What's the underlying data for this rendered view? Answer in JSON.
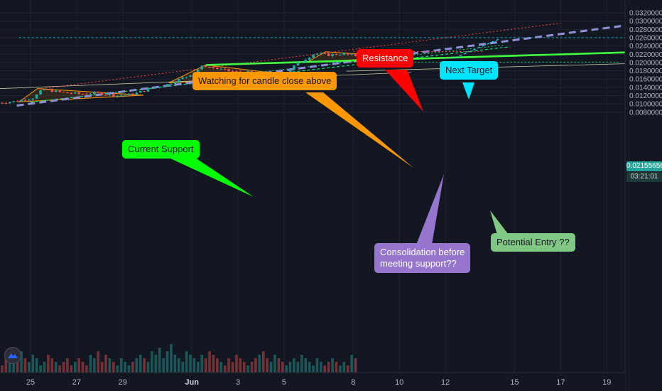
{
  "chart_data": {
    "type": "candlestick",
    "price_axis": [
      "0.03200000",
      "0.03000000",
      "0.02800000",
      "0.02600000",
      "0.02400000",
      "0.02200000",
      "0.02000000",
      "0.01800000",
      "0.01600000",
      "0.01400000",
      "0.01200000",
      "0.01000000",
      "0.00800000"
    ],
    "price_values": [
      0.032,
      0.03,
      0.028,
      0.026,
      0.024,
      0.022,
      0.02,
      0.018,
      0.016,
      0.014,
      0.012,
      0.01,
      0.008
    ],
    "time_axis": [
      {
        "label": "25",
        "day": 25,
        "bold": false
      },
      {
        "label": "27",
        "day": 27,
        "bold": false
      },
      {
        "label": "29",
        "day": 29,
        "bold": false
      },
      {
        "label": "Jun",
        "day": 32,
        "bold": true
      },
      {
        "label": "3",
        "day": 34,
        "bold": false
      },
      {
        "label": "5",
        "day": 36,
        "bold": false
      },
      {
        "label": "8",
        "day": 39,
        "bold": false
      },
      {
        "label": "10",
        "day": 41,
        "bold": false
      },
      {
        "label": "12",
        "day": 43,
        "bold": false
      },
      {
        "label": "15",
        "day": 46,
        "bold": false
      },
      {
        "label": "17",
        "day": 48,
        "bold": false
      },
      {
        "label": "19",
        "day": 50,
        "bold": false
      }
    ],
    "last_price": "0.02155656",
    "last_price_value": 0.02155656,
    "countdown": "03:21:01",
    "colors": {
      "up": "#26a69a",
      "down": "#ef5350",
      "background": "#131722",
      "axis_text": "#b2b5be"
    },
    "grid": true,
    "horizontal_level": 0.026,
    "price_path": [
      [
        23.6,
        0.0102
      ],
      [
        24.5,
        0.0106
      ],
      [
        25.3,
        0.0115
      ],
      [
        25.7,
        0.0135
      ],
      [
        26.5,
        0.0128
      ],
      [
        27.3,
        0.0124
      ],
      [
        28.1,
        0.0126
      ],
      [
        28.9,
        0.012
      ],
      [
        29.6,
        0.0123
      ],
      [
        30.3,
        0.0136
      ],
      [
        31.1,
        0.0147
      ],
      [
        32.0,
        0.0168
      ],
      [
        32.7,
        0.0193
      ],
      [
        33.4,
        0.0183
      ],
      [
        34.1,
        0.0177
      ],
      [
        34.9,
        0.0176
      ],
      [
        35.6,
        0.017
      ],
      [
        36.2,
        0.0173
      ],
      [
        36.7,
        0.0196
      ],
      [
        37.5,
        0.0222
      ],
      [
        38.1,
        0.0218
      ],
      [
        38.7,
        0.0221
      ],
      [
        39.1,
        0.0217
      ]
    ],
    "volume": [
      3,
      2,
      5,
      4,
      7,
      3,
      6,
      4,
      3,
      5,
      4,
      2,
      3,
      5,
      4,
      3,
      2,
      3,
      4,
      2,
      3,
      4,
      3,
      2,
      5,
      4,
      6,
      3,
      5,
      4,
      3,
      2,
      4,
      3,
      2,
      3,
      4,
      5,
      4,
      3,
      6,
      5,
      7,
      4,
      6,
      8,
      5,
      4,
      3,
      6,
      5,
      4,
      3,
      5,
      4,
      6,
      5,
      4,
      3,
      2,
      4,
      3,
      5,
      4,
      3,
      2,
      3,
      4,
      5,
      6,
      4,
      3,
      5,
      4,
      3,
      2,
      3,
      4,
      3,
      5,
      4,
      3,
      2,
      4,
      3,
      2,
      3,
      4,
      3,
      2
    ]
  },
  "annotations": {
    "resistance": {
      "text": "Resistance",
      "bg": "#ff0000",
      "fg": "#ffffff"
    },
    "next_target": {
      "text": "Next Target",
      "bg": "#00e5ff",
      "fg": "#131722"
    },
    "watching": {
      "text": "Watching for candle close above",
      "bg": "#ff9800",
      "fg": "#131722"
    },
    "current_support": {
      "text": "Current Support",
      "bg": "#00ff00",
      "fg": "#131722"
    },
    "consolidation": {
      "line1": "Consolidation before",
      "line2": "meeting support??",
      "bg": "#9575cd",
      "fg": "#ffffff"
    },
    "potential_entry": {
      "text": "Potential Entry ??",
      "bg": "#81c784",
      "fg": "#131722"
    }
  }
}
